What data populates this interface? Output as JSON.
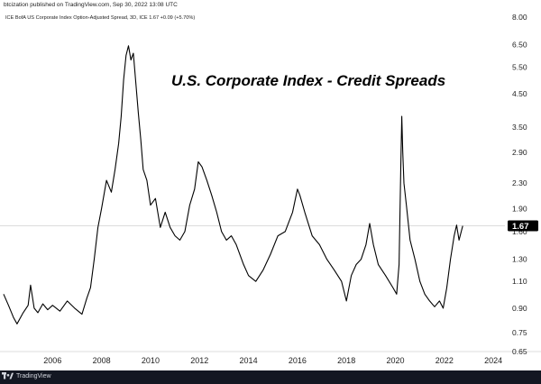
{
  "header": {
    "published_text": "btcization published on TradingView.com, Sep 30, 2022 13:08 UTC"
  },
  "footer": {
    "logo_text": "TradingView"
  },
  "colors": {
    "line": "#000000",
    "price_line": "#c8c8c8",
    "last_value_bg": "#000000",
    "page_bg": "#ffffff",
    "bottom_bar_bg": "#131722"
  },
  "chart_data": {
    "type": "line",
    "series_title": "ICE BofA US Corporate Index Option-Adjusted Spread, 3D, ICE  1.67  +0.09 (+5.70%)",
    "title": "U.S. Corporate Index - Credit Spreads",
    "xlabel": "",
    "ylabel": "",
    "y_scale": "log",
    "ylim": [
      0.65,
      8.0
    ],
    "xlim": [
      2004.0,
      2024.4
    ],
    "y_ticks": [
      "8.00",
      "6.50",
      "5.50",
      "4.50",
      "3.50",
      "2.90",
      "2.30",
      "1.90",
      "1.60",
      "1.30",
      "1.10",
      "0.90",
      "0.75",
      "0.65"
    ],
    "x_ticks": [
      "2006",
      "2008",
      "2010",
      "2012",
      "2014",
      "2016",
      "2018",
      "2020",
      "2022",
      "2024"
    ],
    "last_value": "1.67",
    "grid": false,
    "legend": "none",
    "series": [
      {
        "x": [
          2004.0,
          2004.2,
          2004.4,
          2004.55,
          2004.8,
          2005.0,
          2005.1,
          2005.25,
          2005.4,
          2005.6,
          2005.8,
          2006.0,
          2006.3,
          2006.6,
          2006.9,
          2007.2,
          2007.4,
          2007.55,
          2007.7,
          2007.85,
          2008.0,
          2008.2,
          2008.4,
          2008.55,
          2008.7,
          2008.8,
          2008.9,
          2009.0,
          2009.1,
          2009.2,
          2009.3,
          2009.4,
          2009.5,
          2009.6,
          2009.7,
          2009.85,
          2010.0,
          2010.2,
          2010.4,
          2010.6,
          2010.8,
          2011.0,
          2011.2,
          2011.4,
          2011.6,
          2011.8,
          2011.95,
          2012.1,
          2012.3,
          2012.5,
          2012.7,
          2012.9,
          2013.1,
          2013.3,
          2013.5,
          2013.8,
          2014.0,
          2014.3,
          2014.6,
          2014.9,
          2015.2,
          2015.5,
          2015.8,
          2016.0,
          2016.1,
          2016.3,
          2016.6,
          2016.9,
          2017.2,
          2017.5,
          2017.8,
          2018.0,
          2018.2,
          2018.4,
          2018.6,
          2018.8,
          2018.95,
          2019.1,
          2019.3,
          2019.6,
          2019.9,
          2020.05,
          2020.15,
          2020.22,
          2020.26,
          2020.3,
          2020.35,
          2020.45,
          2020.6,
          2020.8,
          2021.0,
          2021.2,
          2021.4,
          2021.6,
          2021.8,
          2021.95,
          2022.1,
          2022.25,
          2022.4,
          2022.5,
          2022.6,
          2022.75
        ],
        "y": [
          1.0,
          0.92,
          0.84,
          0.8,
          0.87,
          0.92,
          1.07,
          0.9,
          0.87,
          0.93,
          0.89,
          0.92,
          0.88,
          0.95,
          0.9,
          0.86,
          0.97,
          1.05,
          1.3,
          1.65,
          1.9,
          2.35,
          2.15,
          2.55,
          3.1,
          3.8,
          5.0,
          6.0,
          6.45,
          5.8,
          6.1,
          4.9,
          3.9,
          3.2,
          2.55,
          2.35,
          1.95,
          2.05,
          1.65,
          1.85,
          1.65,
          1.55,
          1.5,
          1.6,
          1.95,
          2.2,
          2.7,
          2.6,
          2.35,
          2.1,
          1.85,
          1.6,
          1.5,
          1.55,
          1.45,
          1.25,
          1.15,
          1.1,
          1.2,
          1.35,
          1.55,
          1.6,
          1.85,
          2.2,
          2.1,
          1.85,
          1.55,
          1.45,
          1.3,
          1.2,
          1.1,
          0.95,
          1.15,
          1.25,
          1.3,
          1.45,
          1.7,
          1.45,
          1.25,
          1.15,
          1.05,
          1.0,
          1.25,
          2.6,
          3.8,
          2.9,
          2.3,
          1.95,
          1.5,
          1.3,
          1.1,
          1.0,
          0.95,
          0.91,
          0.95,
          0.9,
          1.05,
          1.3,
          1.55,
          1.68,
          1.5,
          1.67
        ],
        "stroke_width_hint": "thin"
      }
    ]
  }
}
